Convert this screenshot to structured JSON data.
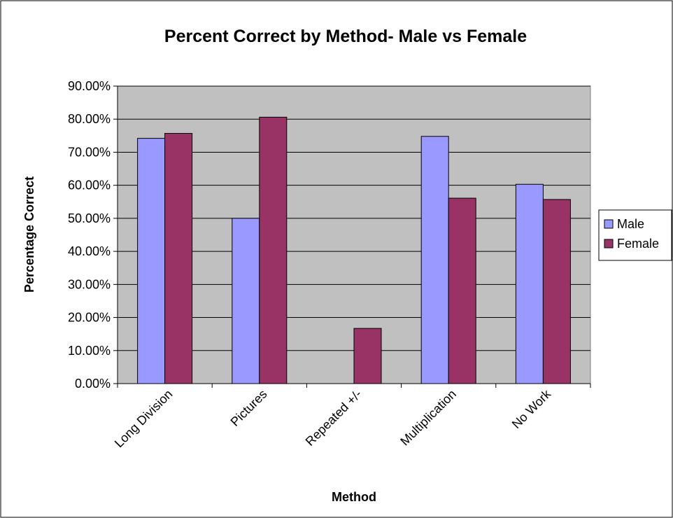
{
  "chart_data": {
    "type": "bar",
    "title": "Percent Correct by Method- Male vs Female",
    "xlabel": "Method",
    "ylabel": "Percentage Correct",
    "categories": [
      "Long Division",
      "Pictures",
      "Repeated +/-",
      "Multiplication",
      "No Work"
    ],
    "series": [
      {
        "name": "Male",
        "color": "#9999ff",
        "values": [
          0.742,
          0.5,
          0.0,
          0.748,
          0.603
        ]
      },
      {
        "name": "Female",
        "color": "#993366",
        "values": [
          0.757,
          0.806,
          0.167,
          0.561,
          0.557
        ]
      }
    ],
    "ylim": [
      0,
      0.9
    ],
    "yticks": [
      "0.00%",
      "10.00%",
      "20.00%",
      "30.00%",
      "40.00%",
      "50.00%",
      "60.00%",
      "70.00%",
      "80.00%",
      "90.00%"
    ],
    "plot_background": "#c0c0c0",
    "grid": true,
    "legend_position": "right"
  }
}
